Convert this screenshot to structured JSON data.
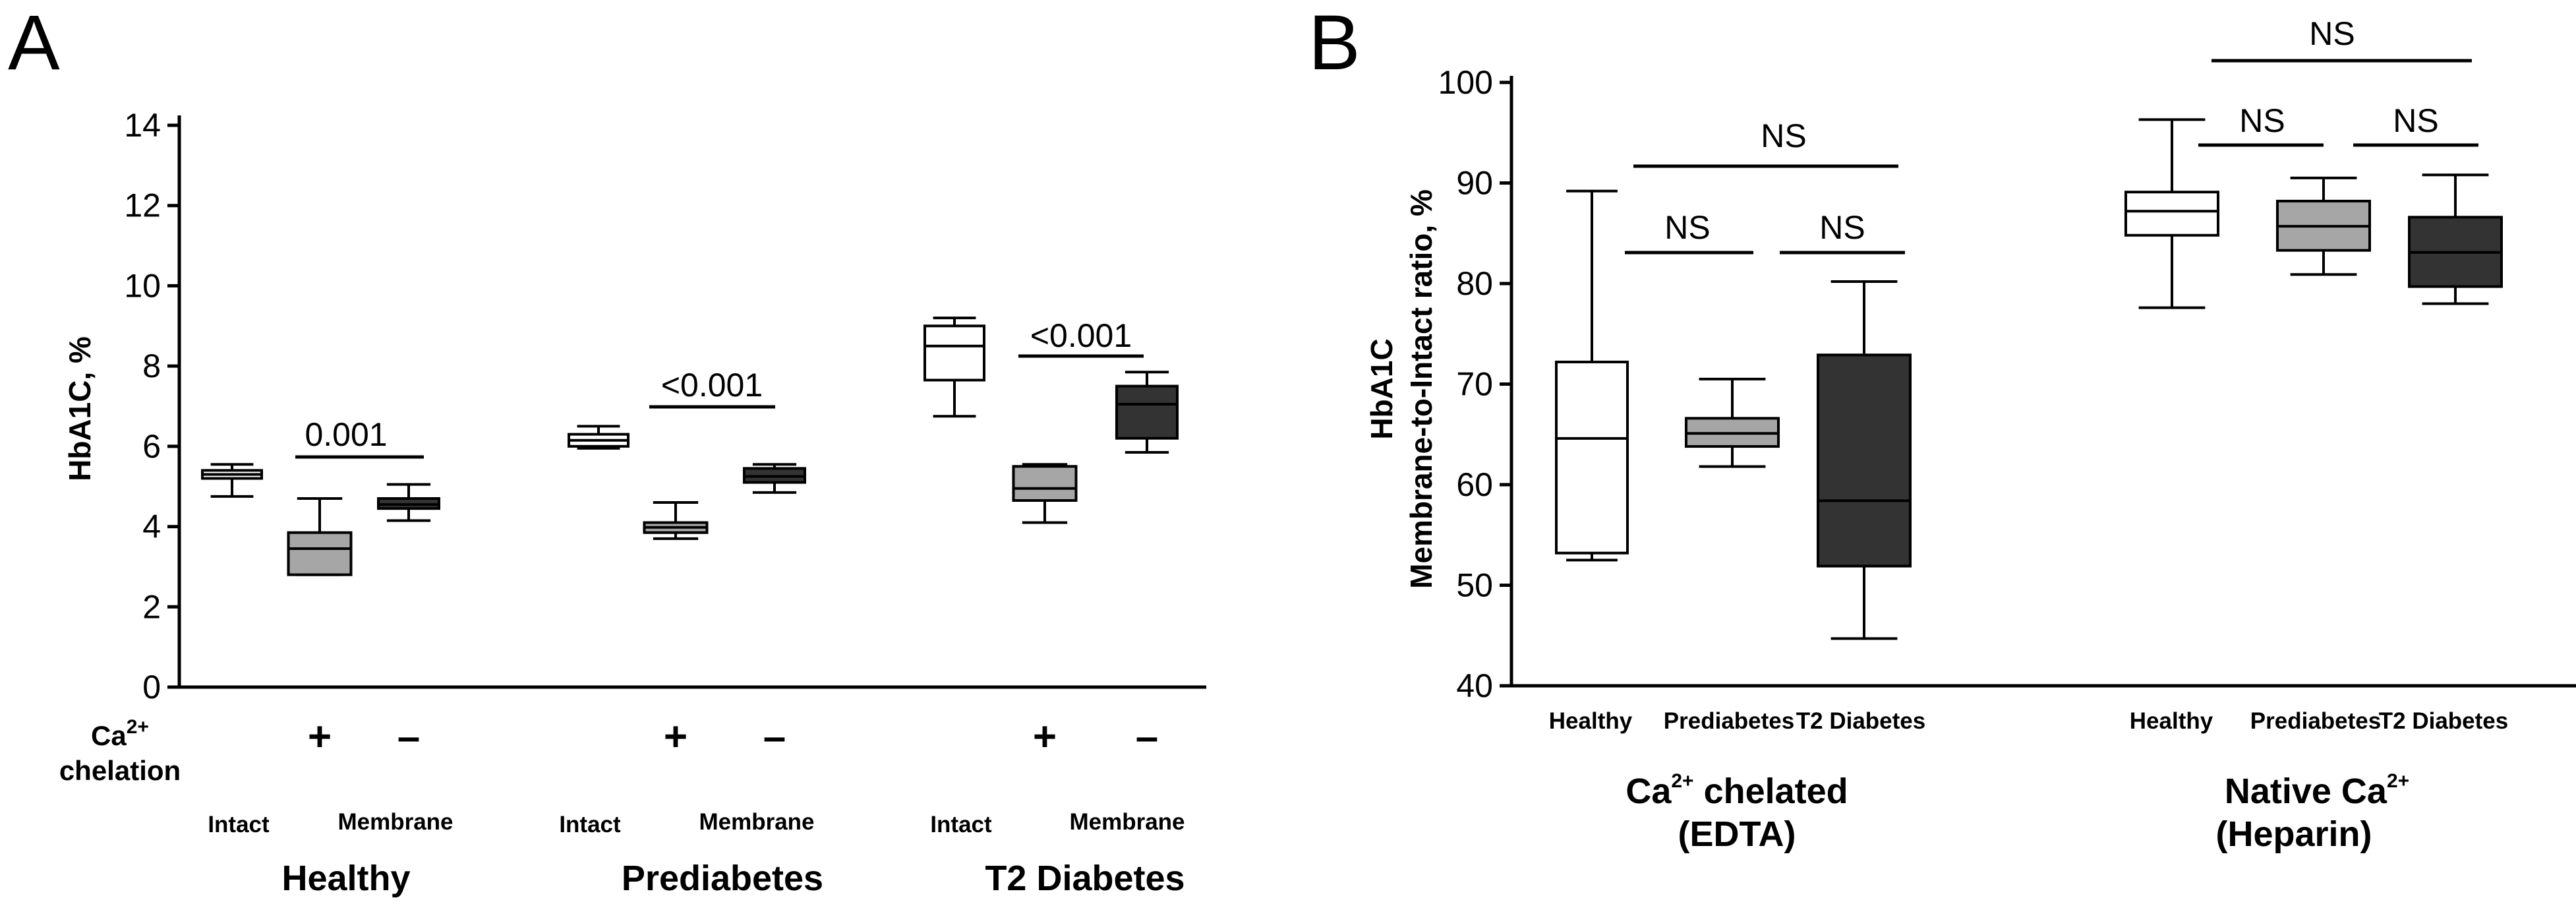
{
  "chart_data": [
    {
      "panel_label": "A",
      "type": "box",
      "ylabel": "HbA1C, %",
      "ylim": [
        0,
        14
      ],
      "yticks": [
        "0",
        "2",
        "4",
        "6",
        "8",
        "10",
        "12",
        "14"
      ],
      "chelation_label": {
        "base": "Ca",
        "sup": "2+",
        "second_line": "chelation"
      },
      "plus_sign": "+",
      "minus_sign": "–",
      "groups": [
        {
          "name": "Healthy",
          "intact_label": "Intact",
          "membrane_label": "Membrane",
          "boxes": [
            {
              "sample": "Intact",
              "color": "#ffffff",
              "min": 4.75,
              "q1": 5.2,
              "median": 5.3,
              "q3": 5.4,
              "max": 5.55
            },
            {
              "sample": "Membrane",
              "chelation": "+",
              "color": "#a6a6a6",
              "min": 2.8,
              "q1": 2.8,
              "median": 3.45,
              "q3": 3.85,
              "max": 4.7
            },
            {
              "sample": "Membrane",
              "chelation": "-",
              "color": "#333333",
              "min": 4.15,
              "q1": 4.45,
              "median": 4.55,
              "q3": 4.7,
              "max": 5.05
            }
          ],
          "comparison": {
            "label": "0.001"
          }
        },
        {
          "name": "Prediabetes",
          "intact_label": "Intact",
          "membrane_label": "Membrane",
          "boxes": [
            {
              "sample": "Intact",
              "color": "#ffffff",
              "min": 5.95,
              "q1": 6.0,
              "median": 6.15,
              "q3": 6.3,
              "max": 6.5
            },
            {
              "sample": "Membrane",
              "chelation": "+",
              "color": "#a6a6a6",
              "min": 3.7,
              "q1": 3.85,
              "median": 3.98,
              "q3": 4.1,
              "max": 4.6
            },
            {
              "sample": "Membrane",
              "chelation": "-",
              "color": "#333333",
              "min": 4.85,
              "q1": 5.1,
              "median": 5.25,
              "q3": 5.45,
              "max": 5.55
            }
          ],
          "comparison": {
            "label": "<0.001"
          }
        },
        {
          "name": "T2 Diabetes",
          "intact_label": "Intact",
          "membrane_label": "Membrane",
          "boxes": [
            {
              "sample": "Intact",
              "color": "#ffffff",
              "min": 6.75,
              "q1": 7.65,
              "median": 8.5,
              "q3": 9.0,
              "max": 9.2
            },
            {
              "sample": "Membrane",
              "chelation": "+",
              "color": "#a6a6a6",
              "min": 4.1,
              "q1": 4.65,
              "median": 4.95,
              "q3": 5.5,
              "max": 5.55
            },
            {
              "sample": "Membrane",
              "chelation": "-",
              "color": "#333333",
              "min": 5.85,
              "q1": 6.2,
              "median": 7.05,
              "q3": 7.5,
              "max": 7.85
            }
          ],
          "comparison": {
            "label": "<0.001"
          }
        }
      ]
    },
    {
      "panel_label": "B",
      "type": "box",
      "ylabel_line1": "HbA1C",
      "ylabel_line2": "Membrane-to-Intact ratio, %",
      "ylim": [
        40,
        100
      ],
      "yticks": [
        "40",
        "50",
        "60",
        "70",
        "80",
        "90",
        "100"
      ],
      "groups": [
        {
          "name_line1": {
            "base": "Ca",
            "sup": "2+",
            "rest": " chelated"
          },
          "name_line2": "(EDTA)",
          "boxes": [
            {
              "category": "Healthy",
              "color": "#ffffff",
              "min": 52.5,
              "q1": 53.2,
              "median": 64.6,
              "q3": 72.2,
              "max": 89.2
            },
            {
              "category": "Prediabetes",
              "color": "#a6a6a6",
              "min": 61.8,
              "q1": 63.8,
              "median": 65.1,
              "q3": 66.6,
              "max": 70.5
            },
            {
              "category": "T2 Diabetes",
              "color": "#333333",
              "min": 44.7,
              "q1": 51.9,
              "median": 58.4,
              "q3": 72.9,
              "max": 80.2
            }
          ],
          "comparisons": [
            "NS",
            "NS",
            "NS"
          ]
        },
        {
          "name_line1": {
            "base": "Native Ca",
            "sup": "2+",
            "rest": ""
          },
          "name_line2": "(Heparin)",
          "boxes": [
            {
              "category": "Healthy",
              "color": "#ffffff",
              "min": 77.6,
              "q1": 84.8,
              "median": 87.2,
              "q3": 89.1,
              "max": 96.3
            },
            {
              "category": "Prediabetes",
              "color": "#a6a6a6",
              "min": 80.9,
              "q1": 83.3,
              "median": 85.7,
              "q3": 88.2,
              "max": 90.5
            },
            {
              "category": "T2 Diabetes",
              "color": "#333333",
              "min": 78.0,
              "q1": 79.7,
              "median": 83.1,
              "q3": 86.6,
              "max": 90.8
            }
          ],
          "comparisons": [
            "NS",
            "NS",
            "NS"
          ]
        }
      ]
    }
  ]
}
